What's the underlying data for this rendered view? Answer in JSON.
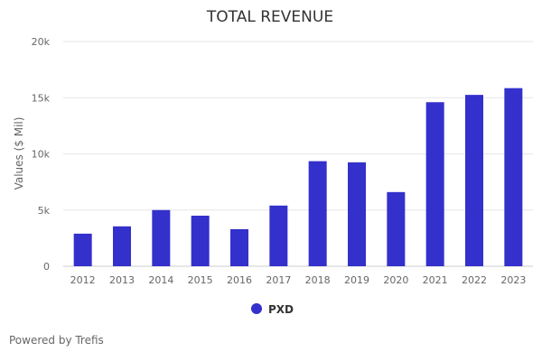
{
  "colors": {
    "bar": "#3430cc",
    "title": "#333333",
    "axis_text": "#666666",
    "grid": "#e6e6e6",
    "legend_text": "#333333"
  },
  "footer": {
    "text": "Powered by Trefis"
  },
  "chart_data": {
    "type": "bar",
    "title": "TOTAL REVENUE",
    "xlabel": "",
    "ylabel": "Values ($ Mil)",
    "categories": [
      "2012",
      "2013",
      "2014",
      "2015",
      "2016",
      "2017",
      "2018",
      "2019",
      "2020",
      "2021",
      "2022",
      "2023"
    ],
    "series": [
      {
        "name": "PXD",
        "values": [
          2900,
          3550,
          5000,
          4500,
          3300,
          5400,
          9350,
          9250,
          6600,
          14600,
          15250,
          15850
        ]
      }
    ],
    "ylim": [
      0,
      20000
    ],
    "yticks": [
      0,
      5000,
      10000,
      15000,
      20000
    ],
    "ytick_labels": [
      "0",
      "5k",
      "10k",
      "15k",
      "20k"
    ],
    "grid": true,
    "legend_position": "bottom-center"
  }
}
